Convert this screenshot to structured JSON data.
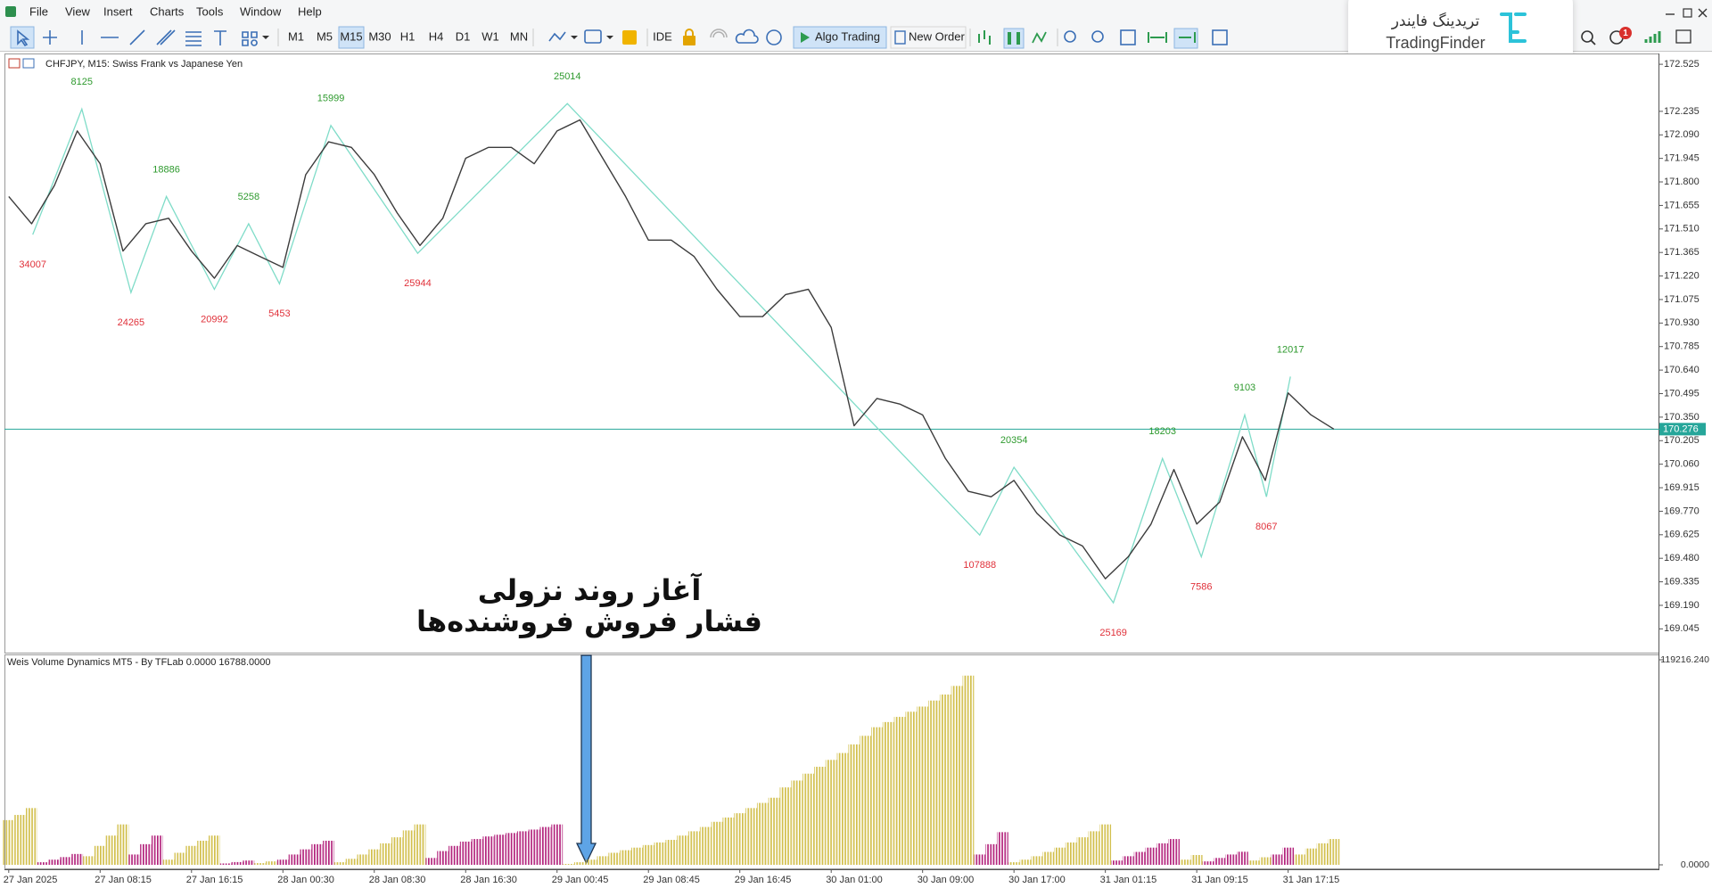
{
  "menu": [
    "File",
    "View",
    "Insert",
    "Charts",
    "Tools",
    "Window",
    "Help"
  ],
  "toolbar": {
    "timeframes": [
      "M1",
      "M5",
      "M15",
      "M30",
      "H1",
      "H4",
      "D1",
      "W1",
      "MN"
    ],
    "ide": "IDE",
    "algo_trading": "Algo Trading",
    "new_order": "New Order"
  },
  "logo": {
    "name_fa": "تریدینگ فایندر",
    "name": "TradingFinder"
  },
  "notifications": 1,
  "annotation": [
    "آغاز روند نزولی",
    "فشار فروش فروشنده‌ها"
  ],
  "chart_data": [
    {
      "type": "line",
      "title": "CHFJPY, M15:  Swiss Frank vs Japanese Yen",
      "color": "#3c3c3c",
      "x": [
        0,
        2,
        4,
        6,
        8,
        10,
        12,
        14,
        16,
        18,
        20,
        22,
        24,
        26,
        28,
        30,
        32,
        34,
        36,
        38,
        40,
        42,
        44,
        46,
        48,
        50,
        52,
        54,
        56,
        58,
        60,
        62,
        64,
        66,
        68,
        70,
        72,
        74,
        76,
        78,
        80,
        82,
        84,
        86,
        88,
        90,
        92,
        94,
        96,
        98,
        100,
        102,
        104,
        106,
        108,
        110,
        112,
        114,
        116
      ],
      "values": [
        171.71,
        171.542,
        171.778,
        172.114,
        171.912,
        171.374,
        171.542,
        171.576,
        171.374,
        171.206,
        171.408,
        171.34,
        171.273,
        171.845,
        172.047,
        172.013,
        171.845,
        171.609,
        171.408,
        171.576,
        171.946,
        172.013,
        172.013,
        171.912,
        172.114,
        172.182,
        171.946,
        171.71,
        171.441,
        171.441,
        171.34,
        171.138,
        170.97,
        170.97,
        171.105,
        171.138,
        170.903,
        170.297,
        170.465,
        170.431,
        170.364,
        170.095,
        169.893,
        169.859,
        169.96,
        169.758,
        169.624,
        169.556,
        169.354,
        169.489,
        169.691,
        170.027,
        169.691,
        169.826,
        170.229,
        169.96,
        170.499,
        170.364,
        170.276
      ],
      "zigzag": {
        "color": "#7fdcc8",
        "high_color": "#2e9a2e",
        "low_color": "#e0313a",
        "x": [
          2.1,
          6.4,
          10.7,
          13.8,
          18,
          21,
          23.7,
          28.2,
          35.8,
          48.9,
          85,
          88,
          96.7,
          101,
          104.4,
          108.2,
          110.1,
          112.2
        ],
        "values": [
          171.475,
          172.249,
          171.118,
          171.71,
          171.138,
          171.542,
          171.172,
          172.148,
          171.36,
          172.283,
          169.623,
          170.041,
          169.206,
          170.095,
          169.489,
          170.364,
          169.859,
          170.6
        ],
        "labels": [
          34007,
          8125,
          24265,
          18886,
          20992,
          5258,
          5453,
          15999,
          25944,
          25014,
          107888,
          20354,
          25169,
          18203,
          7586,
          9103,
          8067,
          12017
        ]
      },
      "current_price": 170.276,
      "current_price_color": "#26a69a",
      "xlim": [
        -0.375,
        144.5
      ],
      "ylim": [
        168.904,
        172.586
      ],
      "grid": false,
      "yticks": [
        172.525,
        172.235,
        {
          "value": 172.09,
          "label": "172.090"
        },
        171.945,
        {
          "value": 171.8,
          "label": "171.800"
        },
        171.655,
        {
          "value": 171.51,
          "label": "171.510"
        },
        171.365,
        {
          "value": 171.22,
          "label": "171.220"
        },
        171.075,
        {
          "value": 170.93,
          "label": "170.930"
        },
        170.785,
        {
          "value": 170.64,
          "label": "170.640"
        },
        170.495,
        {
          "value": 170.35,
          "label": "170.350"
        },
        170.205,
        {
          "value": 170.06,
          "label": "170.060"
        },
        169.915,
        {
          "value": 169.77,
          "label": "169.770"
        },
        169.625,
        {
          "value": 169.48,
          "label": "169.480"
        },
        169.335,
        {
          "value": 169.19,
          "label": "169.190"
        },
        169.045
      ]
    },
    {
      "type": "bar",
      "title": "Weis Volume Dynamics MT5 - By TFLab 0.0000 16788.0000",
      "x": [
        0,
        1,
        2,
        3,
        4,
        5,
        6,
        7,
        8,
        9,
        10,
        11,
        12,
        13,
        14,
        15,
        16,
        17,
        18,
        19,
        20,
        21,
        22,
        23,
        24,
        25,
        26,
        27,
        28,
        29,
        30,
        31,
        32,
        33,
        34,
        35,
        36,
        37,
        38,
        39,
        40,
        41,
        42,
        43,
        44,
        45,
        46,
        47,
        48,
        49,
        50,
        51,
        52,
        53,
        54,
        55,
        56,
        57,
        58,
        59,
        60,
        61,
        62,
        63,
        64,
        65,
        66,
        67,
        68,
        69,
        70,
        71,
        72,
        73,
        74,
        75,
        76,
        77,
        78,
        79,
        80,
        81,
        82,
        83,
        84,
        85,
        86,
        87,
        88,
        89,
        90,
        91,
        92,
        93,
        94,
        95,
        96,
        97,
        98,
        99,
        100,
        101,
        102,
        103,
        104,
        105,
        106,
        107,
        108,
        109,
        110,
        111,
        112,
        113,
        114,
        115,
        116
      ],
      "series": [
        {
          "color": "#d2bf4c",
          "values": [
            26000,
            29000,
            33000,
            null,
            null,
            null,
            null,
            5000,
            11000,
            17000,
            23500,
            null,
            null,
            null,
            3000,
            7000,
            11000,
            14000,
            17000,
            null,
            null,
            null,
            1000,
            2000,
            null,
            null,
            null,
            null,
            null,
            1500,
            3500,
            6000,
            9000,
            12500,
            16000,
            20000,
            23500,
            null,
            null,
            null,
            null,
            null,
            null,
            null,
            null,
            null,
            null,
            null,
            null,
            500,
            1500,
            3000,
            5000,
            7000,
            8500,
            10000,
            11500,
            13000,
            14500,
            17000,
            19500,
            22000,
            25000,
            27500,
            30000,
            33000,
            36000,
            39000,
            45000,
            49000,
            53000,
            57000,
            61000,
            65000,
            70000,
            75000,
            80000,
            83000,
            86000,
            89000,
            92000,
            95500,
            99000,
            104000,
            110000,
            null,
            null,
            null,
            1500,
            3000,
            5000,
            7500,
            10000,
            13000,
            16000,
            19500,
            23500,
            null,
            null,
            null,
            null,
            null,
            null,
            3000,
            5700,
            null,
            null,
            null,
            null,
            2500,
            4400,
            null,
            null,
            6000,
            9500,
            12500,
            15000
          ]
        },
        {
          "color": "#b3237c",
          "values": [
            null,
            null,
            null,
            1500,
            3000,
            4500,
            6300,
            null,
            null,
            null,
            null,
            6000,
            12000,
            17000,
            null,
            null,
            null,
            null,
            null,
            800,
            1600,
            2500,
            null,
            null,
            3000,
            6000,
            9000,
            12000,
            14000,
            null,
            null,
            null,
            null,
            null,
            null,
            null,
            null,
            4000,
            8000,
            11000,
            13500,
            15000,
            16500,
            17500,
            18500,
            19500,
            20500,
            22000,
            23500,
            null,
            null,
            null,
            null,
            null,
            null,
            null,
            null,
            null,
            null,
            null,
            null,
            null,
            null,
            null,
            null,
            null,
            null,
            null,
            null,
            null,
            null,
            null,
            null,
            null,
            null,
            null,
            null,
            null,
            null,
            null,
            null,
            null,
            null,
            null,
            null,
            6000,
            12000,
            19000,
            null,
            null,
            null,
            null,
            null,
            null,
            null,
            null,
            null,
            2500,
            5000,
            7500,
            10000,
            12500,
            15000,
            null,
            null,
            2000,
            4000,
            6000,
            7600,
            null,
            null,
            6000,
            10000,
            null,
            null,
            null,
            null
          ]
        }
      ],
      "xlim": [
        -0.375,
        144.5
      ],
      "xticks": [
        {
          "value": 0,
          "label": "27 Jan 2025"
        },
        {
          "value": 8,
          "label": "27 Jan 08:15"
        },
        {
          "value": 16,
          "label": "27 Jan 16:15"
        },
        {
          "value": 24,
          "label": "28 Jan 00:30"
        },
        {
          "value": 32,
          "label": "28 Jan 08:30"
        },
        {
          "value": 40,
          "label": "28 Jan 16:30"
        },
        {
          "value": 48,
          "label": "29 Jan 00:45"
        },
        {
          "value": 56,
          "label": "29 Jan 08:45"
        },
        {
          "value": 64,
          "label": "29 Jan 16:45"
        },
        {
          "value": 72,
          "label": "30 Jan 01:00"
        },
        {
          "value": 80,
          "label": "30 Jan 09:00"
        },
        {
          "value": 88,
          "label": "30 Jan 17:00"
        },
        {
          "value": 96,
          "label": "31 Jan 01:15"
        },
        {
          "value": 104,
          "label": "31 Jan 09:15"
        },
        {
          "value": 112,
          "label": "31 Jan 17:15"
        }
      ],
      "ylim": [
        0,
        119216.24
      ],
      "grid": false,
      "yticks": [
        {
          "value": 119216.24,
          "label": "119216.240"
        },
        {
          "value": 0,
          "label": "0.0000"
        }
      ]
    }
  ]
}
